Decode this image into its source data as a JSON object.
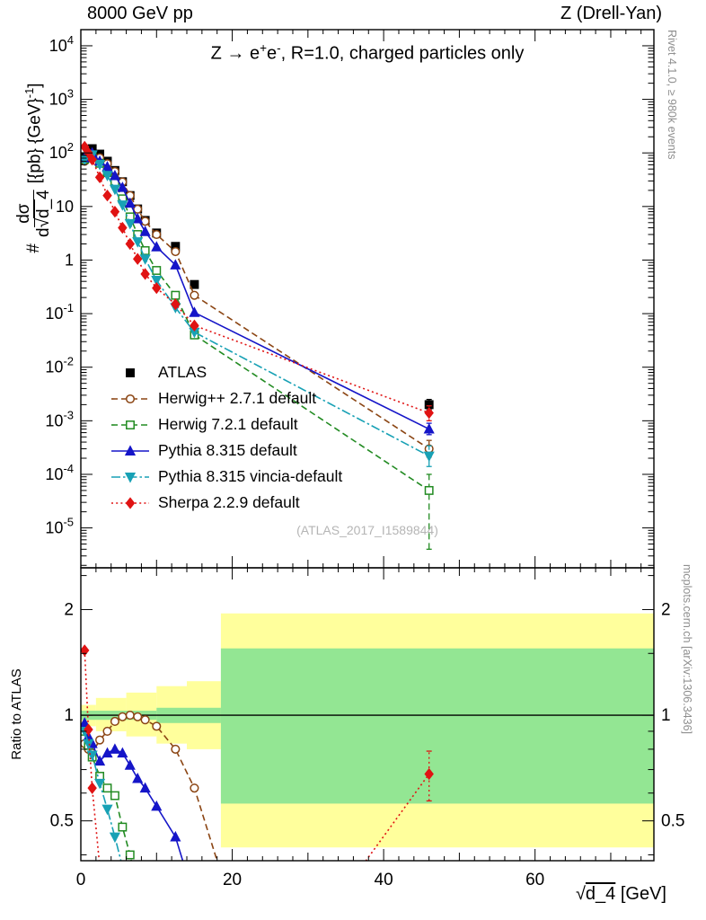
{
  "header": {
    "left": "8000 GeV pp",
    "right": "Z (Drell-Yan)"
  },
  "title": {
    "pre": "Z → e",
    "sup1": "+",
    "mid": "e",
    "sup2": "-",
    "post": ", R=1.0, charged particles only"
  },
  "watermark": "(ATLAS_2017_I1589844)",
  "side": {
    "rivet": "Rivet 4.1.0, ≥ 980k events",
    "mcplots": "mcplots.cern.ch [arXiv:1306.3436]"
  },
  "axes": {
    "main_ylabel": {
      "prefix": "#",
      "numerator": "dσ",
      "den_pre": "d",
      "den_rad": "√",
      "den_arg": "d_4",
      "units_pre": "[{pb} {GeV}",
      "units_sup": "-1",
      "units_post": "]"
    },
    "ratio_ylabel": "Ratio to ATLAS",
    "xlabel": {
      "radical": "√",
      "arg": "d_4",
      "units": "[GeV]"
    }
  },
  "chart_data": {
    "type": "line",
    "title": "Z → e+e-, R=1.0, charged particles only",
    "xlabel": "√d_4 [GeV]",
    "ylabel": "# dσ/d√d_4 [{pb} {GeV}^-1]",
    "xlim": [
      0,
      75.7
    ],
    "ylim": [
      1.8e-06,
      20000.0
    ],
    "ratio_ylim": [
      0.385,
      2.63
    ],
    "x_major_ticks": [
      0,
      20,
      40,
      60
    ],
    "y_tick_exponents": [
      4,
      3,
      2,
      1,
      0,
      -1,
      -2,
      -3,
      -4,
      -5
    ],
    "ratio_yticks": [
      2,
      1,
      0.5
    ],
    "legend_position": "inside-left",
    "x": [
      0.5,
      1,
      1.5,
      2.5,
      3.5,
      4.5,
      5.5,
      6.5,
      7.5,
      8.5,
      10,
      12.5,
      15,
      46
    ],
    "series": [
      {
        "key": "atlas",
        "label": "ATLAS",
        "color": "#000000",
        "marker": "square",
        "open": false,
        "line": "none",
        "y": [
          85,
          110,
          120,
          95,
          70,
          47,
          29,
          16,
          9,
          5.5,
          3.2,
          1.8,
          0.35,
          0.002
        ],
        "err_last": [
          0.0016,
          0.0025
        ]
      },
      {
        "key": "herwigpp",
        "label": "Herwig++ 2.7.1 default",
        "color": "#8b4513",
        "marker": "circle",
        "open": true,
        "line": "dash",
        "y": [
          70,
          88,
          94,
          81,
          63,
          45,
          28.7,
          16,
          8.9,
          5.3,
          3.0,
          1.44,
          0.22,
          0.0003
        ],
        "err_last": [
          0.00021,
          0.00043
        ],
        "ratio": [
          [
            0.5,
            0.83
          ],
          [
            1,
            0.8
          ],
          [
            1.5,
            0.78
          ],
          [
            2.5,
            0.85
          ],
          [
            3.5,
            0.9
          ],
          [
            4.5,
            0.96
          ],
          [
            5.5,
            0.99
          ],
          [
            6.5,
            1.0
          ],
          [
            7.5,
            0.99
          ],
          [
            8.5,
            0.97
          ],
          [
            10,
            0.93
          ],
          [
            12.5,
            0.8
          ],
          [
            15,
            0.62
          ],
          [
            20,
            0.28
          ]
        ]
      },
      {
        "key": "herwig7",
        "label": "Herwig 7.2.1 default",
        "color": "#228b22",
        "marker": "square",
        "open": true,
        "line": "dash",
        "y": [
          76,
          90,
          91,
          64,
          43,
          27.7,
          13.9,
          6.4,
          3.0,
          1.5,
          0.64,
          0.22,
          0.04,
          5e-05
        ],
        "err_last": [
          4e-06,
          0.0001
        ],
        "ratio": [
          [
            0.5,
            0.9
          ],
          [
            1,
            0.82
          ],
          [
            1.5,
            0.76
          ],
          [
            2.5,
            0.67
          ],
          [
            3.5,
            0.62
          ],
          [
            4.5,
            0.59
          ],
          [
            5.5,
            0.48
          ],
          [
            6.5,
            0.4
          ],
          [
            7.5,
            0.32
          ]
        ]
      },
      {
        "key": "pythia",
        "label": "Pythia 8.315 default",
        "color": "#1515c8",
        "marker": "triangle-up",
        "open": false,
        "line": "solid",
        "y": [
          81,
          96,
          100,
          70,
          55,
          37.6,
          22.6,
          11.5,
          5.9,
          3.4,
          1.76,
          0.81,
          0.105,
          0.0007
        ],
        "err_last": [
          0.00055,
          0.0009
        ],
        "ratio": [
          [
            0.5,
            0.95
          ],
          [
            1,
            0.87
          ],
          [
            1.5,
            0.83
          ],
          [
            2.5,
            0.74
          ],
          [
            3.5,
            0.78
          ],
          [
            4.5,
            0.8
          ],
          [
            5.5,
            0.78
          ],
          [
            6.5,
            0.72
          ],
          [
            7.5,
            0.66
          ],
          [
            8.5,
            0.62
          ],
          [
            10,
            0.55
          ],
          [
            12.5,
            0.45
          ],
          [
            15,
            0.3
          ]
        ]
      },
      {
        "key": "vincia",
        "label": "Pythia 8.315 vincia-default",
        "color": "#18a1b5",
        "marker": "triangle-down",
        "open": false,
        "line": "dashdot",
        "y": [
          76,
          91,
          92,
          61,
          38,
          21,
          10.7,
          4.8,
          2.2,
          1.05,
          0.42,
          0.13,
          0.045,
          0.00022
        ],
        "err_last": [
          0.00014,
          0.00034
        ],
        "ratio": [
          [
            0.5,
            0.9
          ],
          [
            1,
            0.83
          ],
          [
            1.5,
            0.77
          ],
          [
            2.5,
            0.64
          ],
          [
            3.5,
            0.54
          ],
          [
            4.5,
            0.45
          ],
          [
            5.5,
            0.37
          ],
          [
            6.5,
            0.28
          ]
        ]
      },
      {
        "key": "sherpa",
        "label": "Sherpa 2.2.9 default",
        "color": "#e01313",
        "marker": "diamond",
        "open": false,
        "line": "dot",
        "y": [
          130,
          100,
          75,
          35,
          16,
          8,
          4,
          2,
          1.05,
          0.55,
          0.3,
          0.15,
          0.06,
          0.0014
        ],
        "err_last": [
          0.001,
          0.0019
        ],
        "ratio": [
          [
            0.5,
            1.53
          ],
          [
            1,
            0.91
          ],
          [
            1.5,
            0.62
          ],
          [
            2.5,
            0.37
          ],
          [
            3,
            0.25
          ],
          null,
          [
            34,
            0.3
          ],
          [
            46,
            0.68
          ]
        ],
        "ratio_err": {
          "x": 46,
          "lo": 0.57,
          "hi": 0.79
        }
      }
    ],
    "ratio_panel": {
      "ylabel": "Ratio to ATLAS",
      "bands": {
        "yellow_color": "#ffff9c",
        "green_color": "#93e693",
        "yellow": [
          [
            0,
            2,
            0.93,
            1.07
          ],
          [
            2,
            6,
            0.9,
            1.12
          ],
          [
            6,
            10,
            0.87,
            1.16
          ],
          [
            10,
            14,
            0.83,
            1.21
          ],
          [
            14,
            18.5,
            0.8,
            1.25
          ],
          [
            18.5,
            75.7,
            0.42,
            1.95
          ]
        ],
        "green": [
          [
            0,
            10,
            0.97,
            1.03
          ],
          [
            10,
            18.5,
            0.95,
            1.05
          ],
          [
            18.5,
            75.7,
            0.56,
            1.55
          ]
        ]
      }
    }
  },
  "legend": {
    "items": [
      "ATLAS",
      "Herwig++ 2.7.1 default",
      "Herwig 7.2.1 default",
      "Pythia 8.315 default",
      "Pythia 8.315 vincia-default",
      "Sherpa 2.2.9 default"
    ]
  }
}
